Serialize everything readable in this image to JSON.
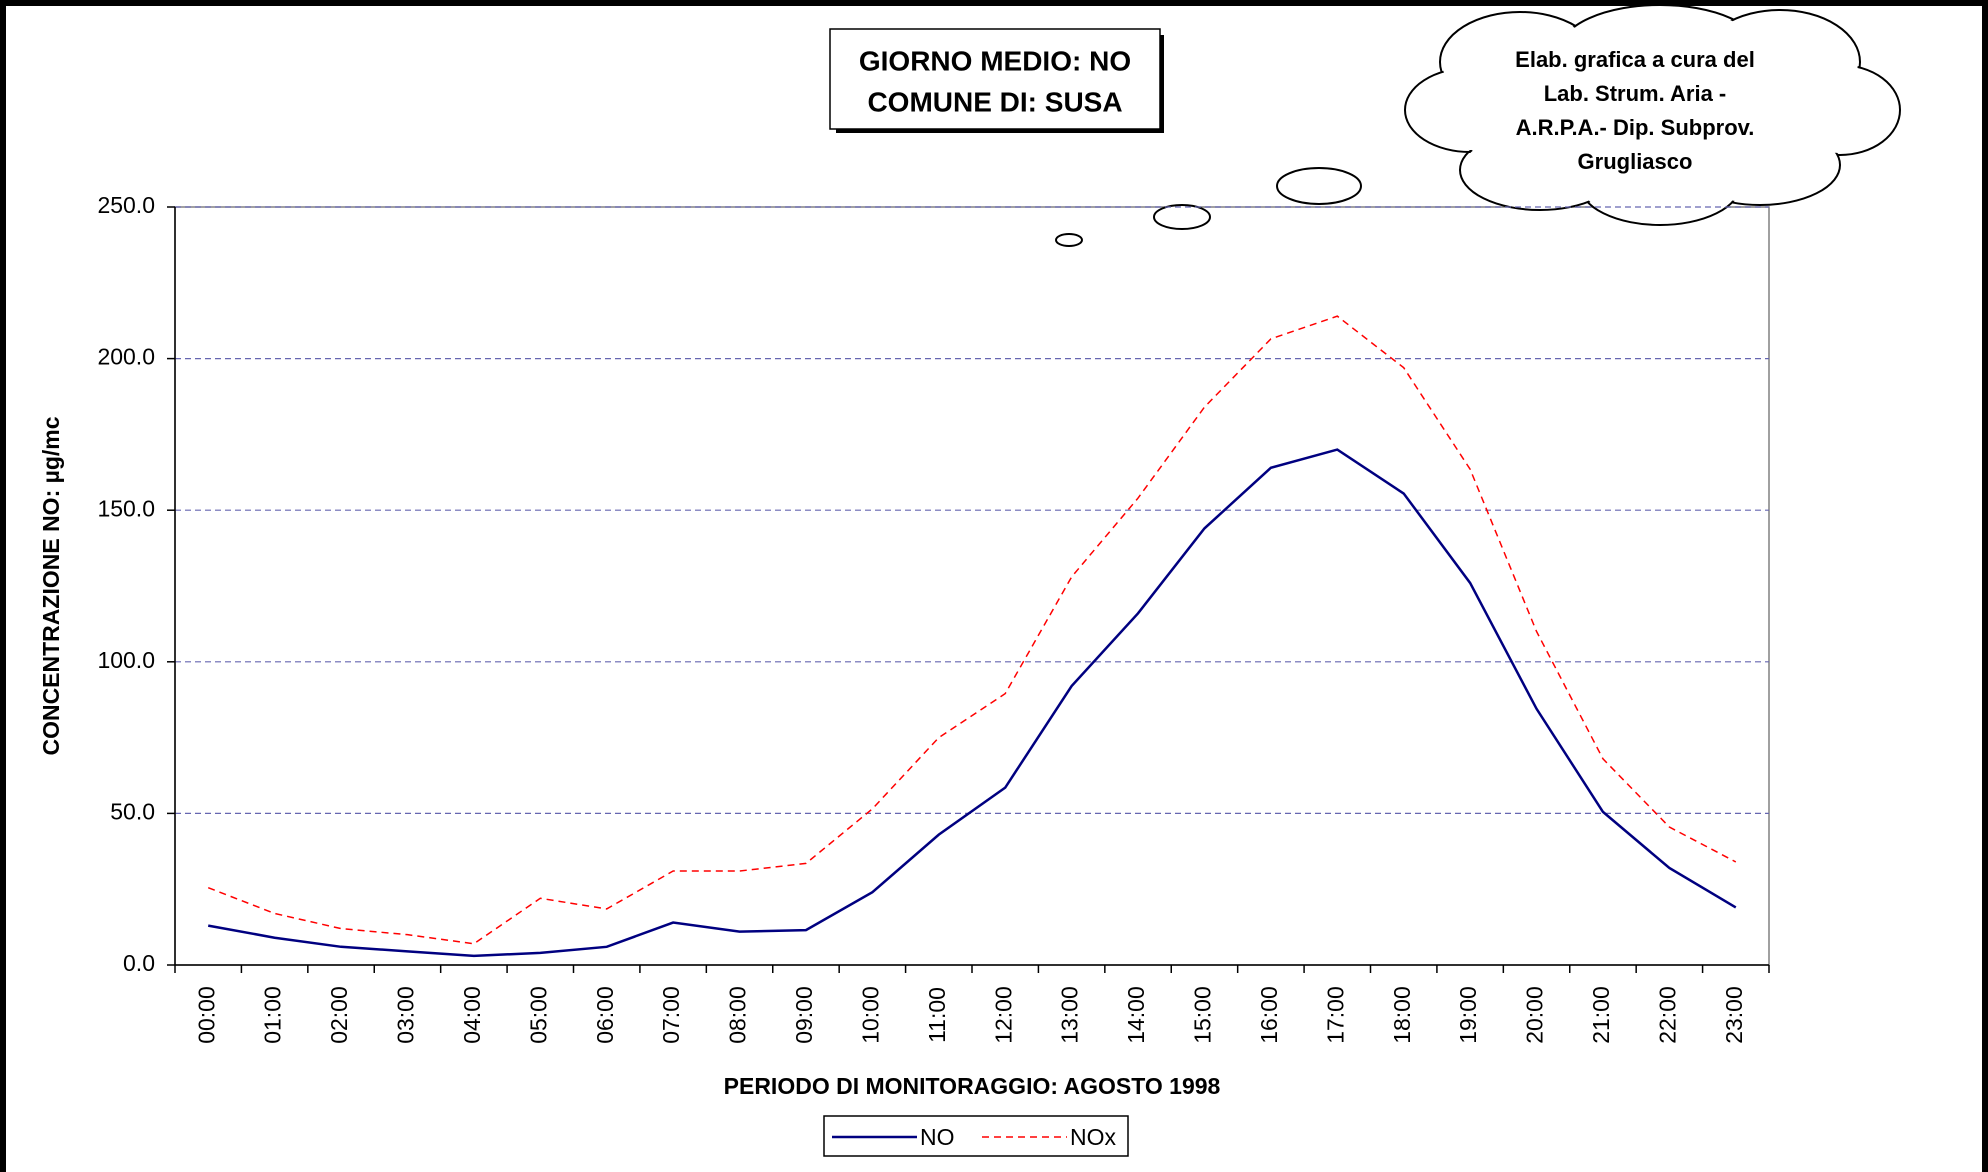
{
  "chart_data": {
    "type": "line",
    "title": "GIORNO MEDIO: NO",
    "subtitle": "COMUNE DI: SUSA",
    "annotation": [
      "Elab. grafica a cura del",
      "Lab. Strum. Aria -",
      "A.R.P.A.- Dip. Subprov.",
      "Grugliasco"
    ],
    "x_label": "PERIODO DI MONITORAGGIO: AGOSTO 1998",
    "y_label": "CONCENTRAZIONE NO: µg/mc",
    "categories": [
      "00:00",
      "01:00",
      "02:00",
      "03:00",
      "04:00",
      "05:00",
      "06:00",
      "07:00",
      "08:00",
      "09:00",
      "10:00",
      "11:00",
      "12:00",
      "13:00",
      "14:00",
      "15:00",
      "16:00",
      "17:00",
      "18:00",
      "19:00",
      "20:00",
      "21:00",
      "22:00",
      "23:00"
    ],
    "series": [
      {
        "name": "NO",
        "color": "#000080",
        "line_style": "solid",
        "values": [
          13,
          9,
          6,
          4.5,
          3,
          4,
          6,
          14,
          11,
          11.5,
          24,
          43,
          58.5,
          92,
          116,
          144,
          164,
          170,
          155.5,
          126,
          84.5,
          50.5,
          32,
          19
        ]
      },
      {
        "name": "NOx",
        "color": "#ff0000",
        "line_style": "dashed",
        "values": [
          25.5,
          17,
          12,
          10,
          7,
          22,
          18.5,
          31,
          31,
          33.5,
          51.5,
          75,
          89.5,
          128,
          154,
          184,
          206.5,
          214,
          197,
          163.5,
          110,
          68,
          45.5,
          34
        ]
      }
    ],
    "ylim": [
      0,
      250
    ],
    "yticks": [
      {
        "value": 0,
        "label": "0.0"
      },
      {
        "value": 50,
        "label": "50.0"
      },
      {
        "value": 100,
        "label": "100.0"
      },
      {
        "value": 150,
        "label": "150.0"
      },
      {
        "value": 200,
        "label": "200.0"
      },
      {
        "value": 250,
        "label": "250.0"
      }
    ],
    "grid": true,
    "legend": "bottom"
  }
}
